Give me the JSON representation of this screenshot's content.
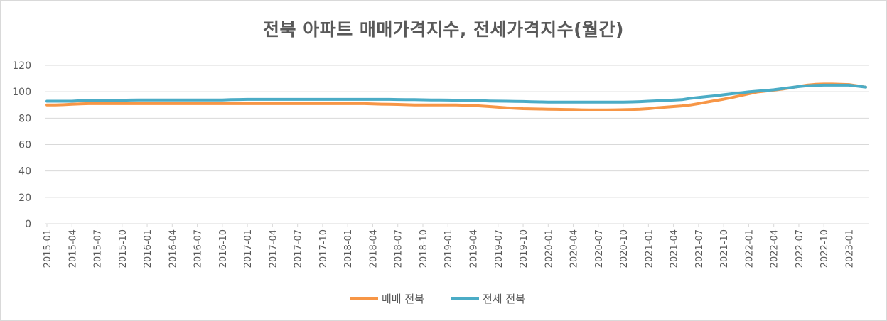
{
  "chart_data": {
    "type": "line",
    "title": "전북 아파트 매매가격지수, 전세가격지수(월간)",
    "xlabel": "",
    "ylabel": "",
    "ylim": [
      0,
      120
    ],
    "yticks": [
      0,
      20,
      40,
      60,
      80,
      100,
      120
    ],
    "grid": true,
    "legend_position": "bottom",
    "x_tick_labels": [
      "2015-01",
      "2015-04",
      "2015-07",
      "2015-10",
      "2016-01",
      "2016-04",
      "2016-07",
      "2016-10",
      "2017-01",
      "2017-04",
      "2017-07",
      "2017-10",
      "2018-01",
      "2018-04",
      "2018-07",
      "2018-10",
      "2019-01",
      "2019-04",
      "2019-07",
      "2019-10",
      "2020-01",
      "2020-04",
      "2020-07",
      "2020-10",
      "2021-01",
      "2021-04",
      "2021-07",
      "2021-10",
      "2022-01",
      "2022-04",
      "2022-07",
      "2022-10",
      "2023-01"
    ],
    "x_start": "2015-01",
    "series": [
      {
        "name": "매매 전북",
        "color": "#F79646",
        "values": [
          90.0,
          90.0,
          90.2,
          90.5,
          90.8,
          91.0,
          91.0,
          91.0,
          91.0,
          91.0,
          91.0,
          91.0,
          91.0,
          91.0,
          91.0,
          91.0,
          91.0,
          91.0,
          91.0,
          91.0,
          91.0,
          91.0,
          91.0,
          91.0,
          91.0,
          91.0,
          91.0,
          91.0,
          91.0,
          91.0,
          91.0,
          91.0,
          91.0,
          91.0,
          91.0,
          91.0,
          91.0,
          91.0,
          91.0,
          90.8,
          90.6,
          90.5,
          90.4,
          90.2,
          90.0,
          90.0,
          90.0,
          90.0,
          90.0,
          90.0,
          89.8,
          89.6,
          89.2,
          88.8,
          88.3,
          87.8,
          87.5,
          87.2,
          87.0,
          86.9,
          86.8,
          86.7,
          86.6,
          86.5,
          86.3,
          86.2,
          86.2,
          86.2,
          86.3,
          86.4,
          86.6,
          86.8,
          87.2,
          87.8,
          88.3,
          88.8,
          89.3,
          90.0,
          91.0,
          92.2,
          93.3,
          94.4,
          95.6,
          97.0,
          98.5,
          99.8,
          100.5,
          101.2,
          102.0,
          103.0,
          104.0,
          105.0,
          105.6,
          105.8,
          105.8,
          105.6,
          105.4,
          104.5,
          103.5
        ]
      },
      {
        "name": "전세 전북",
        "color": "#4BACC6",
        "values": [
          92.8,
          92.8,
          92.8,
          92.8,
          93.2,
          93.4,
          93.5,
          93.5,
          93.5,
          93.6,
          93.7,
          93.8,
          93.8,
          93.8,
          93.8,
          93.8,
          93.8,
          93.8,
          93.8,
          93.8,
          93.8,
          93.8,
          94.0,
          94.1,
          94.2,
          94.2,
          94.2,
          94.2,
          94.2,
          94.2,
          94.2,
          94.2,
          94.2,
          94.2,
          94.2,
          94.2,
          94.2,
          94.2,
          94.2,
          94.2,
          94.2,
          94.2,
          94.1,
          94.0,
          94.0,
          93.9,
          93.8,
          93.8,
          93.7,
          93.6,
          93.5,
          93.4,
          93.2,
          93.0,
          92.9,
          92.8,
          92.7,
          92.6,
          92.4,
          92.3,
          92.2,
          92.2,
          92.2,
          92.2,
          92.2,
          92.2,
          92.2,
          92.2,
          92.2,
          92.2,
          92.3,
          92.5,
          92.8,
          93.1,
          93.4,
          93.7,
          94.0,
          95.0,
          95.7,
          96.3,
          96.9,
          97.7,
          98.5,
          99.2,
          99.9,
          100.4,
          100.9,
          101.5,
          102.3,
          103.1,
          103.9,
          104.5,
          104.8,
          105.0,
          105.0,
          105.0,
          105.0,
          104.3,
          103.5
        ]
      }
    ]
  }
}
